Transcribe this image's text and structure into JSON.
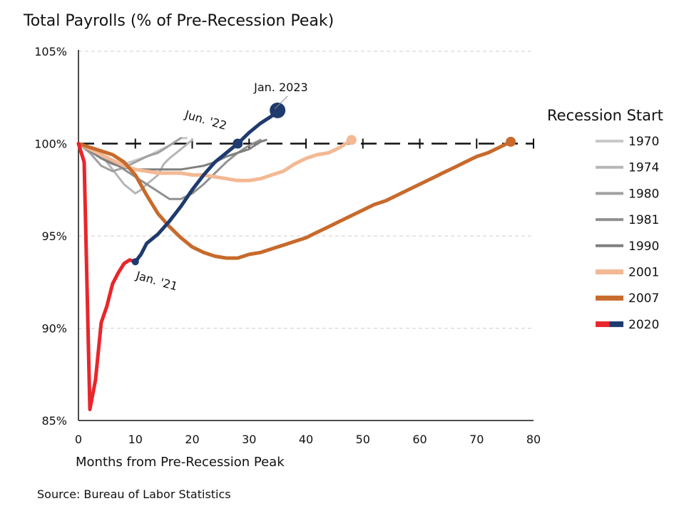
{
  "chart_data": {
    "type": "line",
    "title": "Total Payrolls (% of Pre-Recession Peak)",
    "xlabel": "Months from Pre-Recession Peak",
    "ylabel": "",
    "source": "Source: Bureau of Labor Statistics",
    "xlim": [
      0,
      80
    ],
    "ylim": [
      85,
      105
    ],
    "x_ticks": [
      0,
      10,
      20,
      30,
      40,
      50,
      60,
      70,
      80
    ],
    "y_ticks": [
      {
        "value": 85,
        "label": "85%"
      },
      {
        "value": 90,
        "label": "90%"
      },
      {
        "value": 95,
        "label": "95%"
      },
      {
        "value": 100,
        "label": "100%"
      },
      {
        "value": 105,
        "label": "105%"
      }
    ],
    "grid": "horizontal dashed",
    "legend_title": "Recession Start",
    "legend_position": "right",
    "reference_line": {
      "y": 100,
      "style": "dashed",
      "color": "#111111"
    },
    "colors": {
      "red": "#e8262b",
      "navy": "#1f3a6e",
      "orange": "#c76a2c",
      "peach": "#f3b994"
    },
    "series": [
      {
        "name": "1970",
        "color": "#c8c8c8",
        "width": 3,
        "points": [
          [
            0,
            100
          ],
          [
            2,
            99.6
          ],
          [
            4,
            99.3
          ],
          [
            6,
            99.0
          ],
          [
            8,
            98.9
          ],
          [
            10,
            99.1
          ],
          [
            12,
            99.3
          ],
          [
            14,
            99.6
          ],
          [
            16,
            99.9
          ],
          [
            18,
            100.3
          ],
          [
            19,
            100.3
          ]
        ]
      },
      {
        "name": "1974",
        "color": "#b5b5b5",
        "width": 3,
        "points": [
          [
            0,
            100
          ],
          [
            2,
            99.8
          ],
          [
            4,
            99.4
          ],
          [
            6,
            98.6
          ],
          [
            8,
            97.8
          ],
          [
            10,
            97.3
          ],
          [
            11,
            97.5
          ],
          [
            12,
            97.8
          ],
          [
            14,
            98.3
          ],
          [
            15,
            98.9
          ],
          [
            16,
            99.2
          ],
          [
            18,
            99.7
          ],
          [
            20,
            100.2
          ]
        ]
      },
      {
        "name": "1980",
        "color": "#a0a0a0",
        "width": 3,
        "points": [
          [
            0,
            100
          ],
          [
            2,
            99.5
          ],
          [
            4,
            98.8
          ],
          [
            6,
            98.5
          ],
          [
            8,
            98.7
          ],
          [
            10,
            99.0
          ],
          [
            12,
            99.3
          ],
          [
            14,
            99.5
          ],
          [
            15,
            99.7
          ],
          [
            16,
            99.9
          ],
          [
            17,
            100.1
          ],
          [
            18,
            100.3
          ]
        ]
      },
      {
        "name": "1981",
        "color": "#909090",
        "width": 3,
        "points": [
          [
            0,
            100
          ],
          [
            2,
            99.8
          ],
          [
            4,
            99.4
          ],
          [
            6,
            99.0
          ],
          [
            8,
            98.6
          ],
          [
            10,
            98.2
          ],
          [
            12,
            97.8
          ],
          [
            14,
            97.4
          ],
          [
            16,
            97.0
          ],
          [
            18,
            97.0
          ],
          [
            20,
            97.3
          ],
          [
            22,
            97.8
          ],
          [
            24,
            98.4
          ],
          [
            26,
            99.0
          ],
          [
            28,
            99.5
          ],
          [
            30,
            99.9
          ],
          [
            32,
            100.2
          ]
        ]
      },
      {
        "name": "1990",
        "color": "#7f7f7f",
        "width": 3,
        "points": [
          [
            0,
            100
          ],
          [
            2,
            99.6
          ],
          [
            4,
            99.2
          ],
          [
            6,
            98.9
          ],
          [
            8,
            98.7
          ],
          [
            10,
            98.6
          ],
          [
            12,
            98.6
          ],
          [
            14,
            98.6
          ],
          [
            16,
            98.6
          ],
          [
            18,
            98.6
          ],
          [
            20,
            98.7
          ],
          [
            22,
            98.8
          ],
          [
            24,
            99.0
          ],
          [
            26,
            99.3
          ],
          [
            28,
            99.5
          ],
          [
            30,
            99.7
          ],
          [
            32,
            100.1
          ],
          [
            33,
            100.2
          ]
        ]
      },
      {
        "name": "2001",
        "color": "#f3b994",
        "width": 5,
        "points": [
          [
            0,
            100
          ],
          [
            2,
            99.7
          ],
          [
            4,
            99.4
          ],
          [
            6,
            99.1
          ],
          [
            8,
            98.8
          ],
          [
            10,
            98.6
          ],
          [
            12,
            98.5
          ],
          [
            14,
            98.4
          ],
          [
            16,
            98.4
          ],
          [
            18,
            98.4
          ],
          [
            20,
            98.3
          ],
          [
            22,
            98.3
          ],
          [
            24,
            98.2
          ],
          [
            26,
            98.1
          ],
          [
            28,
            98.0
          ],
          [
            30,
            98.0
          ],
          [
            32,
            98.1
          ],
          [
            34,
            98.3
          ],
          [
            36,
            98.5
          ],
          [
            38,
            98.9
          ],
          [
            40,
            99.2
          ],
          [
            42,
            99.4
          ],
          [
            44,
            99.5
          ],
          [
            46,
            99.8
          ],
          [
            48,
            100.2
          ]
        ],
        "end_marker": true
      },
      {
        "name": "2007",
        "color": "#c76a2c",
        "width": 5,
        "points": [
          [
            0,
            100
          ],
          [
            2,
            99.8
          ],
          [
            4,
            99.6
          ],
          [
            6,
            99.4
          ],
          [
            8,
            99.0
          ],
          [
            10,
            98.3
          ],
          [
            12,
            97.2
          ],
          [
            14,
            96.2
          ],
          [
            16,
            95.5
          ],
          [
            18,
            94.9
          ],
          [
            20,
            94.4
          ],
          [
            22,
            94.1
          ],
          [
            24,
            93.9
          ],
          [
            26,
            93.8
          ],
          [
            28,
            93.8
          ],
          [
            30,
            94.0
          ],
          [
            32,
            94.1
          ],
          [
            34,
            94.3
          ],
          [
            36,
            94.5
          ],
          [
            38,
            94.7
          ],
          [
            40,
            94.9
          ],
          [
            42,
            95.2
          ],
          [
            44,
            95.5
          ],
          [
            46,
            95.8
          ],
          [
            48,
            96.1
          ],
          [
            50,
            96.4
          ],
          [
            52,
            96.7
          ],
          [
            54,
            96.9
          ],
          [
            56,
            97.2
          ],
          [
            58,
            97.5
          ],
          [
            60,
            97.8
          ],
          [
            62,
            98.1
          ],
          [
            64,
            98.4
          ],
          [
            66,
            98.7
          ],
          [
            68,
            99.0
          ],
          [
            70,
            99.3
          ],
          [
            72,
            99.5
          ],
          [
            74,
            99.8
          ],
          [
            76,
            100.1
          ]
        ],
        "end_marker": true
      },
      {
        "name": "2020",
        "color": "#e8262b",
        "width": 5,
        "points": [
          [
            0,
            100
          ],
          [
            1,
            99.0
          ],
          [
            2,
            85.6
          ],
          [
            3,
            87.2
          ],
          [
            4,
            90.3
          ],
          [
            5,
            91.2
          ],
          [
            6,
            92.4
          ],
          [
            7,
            93.0
          ],
          [
            8,
            93.5
          ],
          [
            9,
            93.7
          ],
          [
            10,
            93.6
          ]
        ]
      },
      {
        "name": "2020",
        "color": "#1f3a6e",
        "width": 5,
        "legend": false,
        "points": [
          [
            10,
            93.6
          ],
          [
            11,
            94.0
          ],
          [
            12,
            94.6
          ],
          [
            14,
            95.1
          ],
          [
            16,
            95.8
          ],
          [
            18,
            96.6
          ],
          [
            20,
            97.5
          ],
          [
            22,
            98.3
          ],
          [
            24,
            99.0
          ],
          [
            26,
            99.5
          ],
          [
            28,
            100.0
          ],
          [
            30,
            100.6
          ],
          [
            32,
            101.1
          ],
          [
            34,
            101.5
          ],
          [
            35,
            101.8
          ]
        ]
      }
    ],
    "annotations": [
      {
        "text": "Jan. 2023",
        "x": 35,
        "y": 101.8,
        "marker": "large"
      },
      {
        "text": "Jun. '22",
        "x": 28,
        "y": 100.0,
        "marker": "medium"
      },
      {
        "text": "Jan. '21",
        "x": 10,
        "y": 93.6,
        "marker": "small"
      }
    ]
  }
}
